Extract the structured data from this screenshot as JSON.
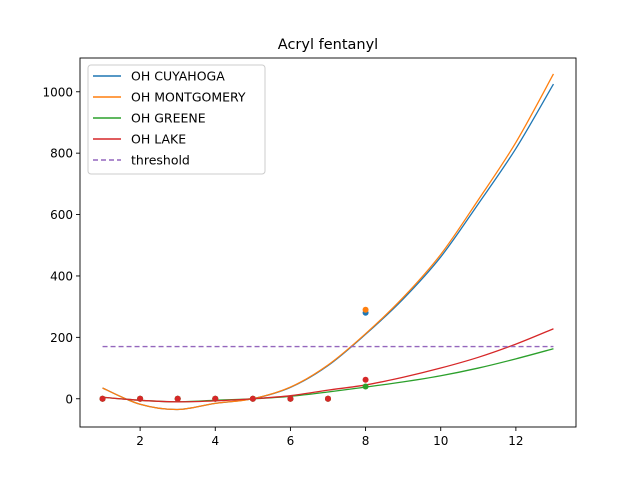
{
  "chart_data": {
    "type": "line",
    "title": "Acryl fentanyl",
    "xlabel": "",
    "ylabel": "",
    "xlim": [
      0.4,
      13.6
    ],
    "ylim": [
      -92,
      1110
    ],
    "xticks": [
      2,
      4,
      6,
      8,
      10,
      12
    ],
    "yticks": [
      0,
      200,
      400,
      600,
      800,
      1000
    ],
    "grid": false,
    "legend_position": "top-left",
    "series": [
      {
        "name": "OH CUYAHOGA",
        "color": "#1f77b4",
        "points_x": [
          1,
          2,
          3,
          4,
          5,
          6,
          7,
          8
        ],
        "points_y": [
          0,
          0,
          0,
          0,
          0,
          0,
          0,
          280
        ],
        "fit_x": [
          1,
          2,
          3,
          4,
          5,
          6,
          7,
          8,
          9,
          10,
          11,
          12,
          13
        ],
        "fit_y": [
          35,
          -18,
          -35,
          -15,
          0,
          37,
          108,
          210,
          325,
          462,
          635,
          815,
          1025
        ]
      },
      {
        "name": "OH MONTGOMERY",
        "color": "#ff7f0e",
        "points_x": [
          1,
          2,
          3,
          4,
          5,
          6,
          7,
          8
        ],
        "points_y": [
          0,
          0,
          0,
          0,
          0,
          0,
          0,
          290
        ],
        "fit_x": [
          1,
          2,
          3,
          4,
          5,
          6,
          7,
          8,
          9,
          10,
          11,
          12,
          13
        ],
        "fit_y": [
          35,
          -18,
          -35,
          -15,
          0,
          38,
          110,
          212,
          330,
          470,
          648,
          835,
          1058
        ]
      },
      {
        "name": "OH GREENE",
        "color": "#2ca02c",
        "points_x": [
          1,
          2,
          3,
          4,
          5,
          6,
          7,
          8
        ],
        "points_y": [
          0,
          0,
          0,
          0,
          0,
          0,
          0,
          40
        ],
        "fit_x": [
          1,
          2,
          3,
          4,
          5,
          6,
          7,
          8,
          9,
          10,
          11,
          12,
          13
        ],
        "fit_y": [
          5,
          -5,
          -10,
          -5,
          0,
          8,
          22,
          38,
          55,
          75,
          100,
          130,
          163
        ]
      },
      {
        "name": "OH LAKE",
        "color": "#d62728",
        "points_x": [
          1,
          2,
          3,
          4,
          5,
          6,
          7,
          8
        ],
        "points_y": [
          0,
          0,
          0,
          0,
          0,
          0,
          0,
          62
        ],
        "fit_x": [
          1,
          2,
          3,
          4,
          5,
          6,
          7,
          8,
          9,
          10,
          11,
          12,
          13
        ],
        "fit_y": [
          5,
          -5,
          -10,
          -7,
          0,
          10,
          28,
          45,
          70,
          100,
          135,
          178,
          228
        ]
      },
      {
        "name": "threshold",
        "color": "#9467bd",
        "dashed": true,
        "fit_x": [
          1,
          13
        ],
        "fit_y": [
          170,
          170
        ]
      }
    ]
  }
}
